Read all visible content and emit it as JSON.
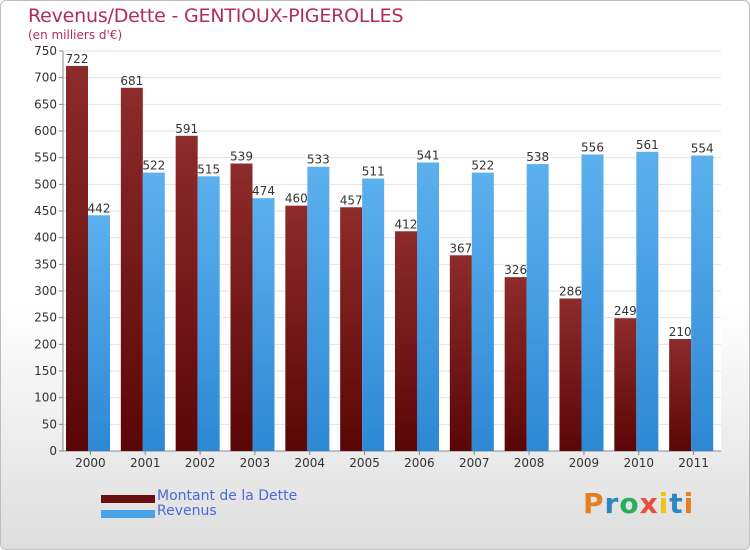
{
  "chart_data": {
    "type": "bar",
    "title": "Revenus/Dette - GENTIOUX-PIGEROLLES",
    "subtitle": "(en milliers d'€)",
    "categories": [
      "2000",
      "2001",
      "2002",
      "2003",
      "2004",
      "2005",
      "2006",
      "2007",
      "2008",
      "2009",
      "2010",
      "2011"
    ],
    "series": [
      {
        "name": "Montant de la Dette",
        "color": "#7a1a1a",
        "values": [
          722,
          681,
          591,
          539,
          460,
          457,
          412,
          367,
          326,
          286,
          249,
          210
        ]
      },
      {
        "name": "Revenus",
        "color": "#4aa3e6",
        "values": [
          442,
          522,
          515,
          474,
          533,
          511,
          541,
          522,
          538,
          556,
          561,
          554
        ]
      }
    ],
    "ylim": [
      0,
      750
    ],
    "yticks": [
      0,
      50,
      100,
      150,
      200,
      250,
      300,
      350,
      400,
      450,
      500,
      550,
      600,
      650,
      700,
      750
    ],
    "grid": true,
    "legend_position": "bottom-left"
  },
  "logo": {
    "text": "Proxiti",
    "letters": [
      "P",
      "r",
      "o",
      "x",
      "i",
      "t",
      "i"
    ],
    "colors": [
      "#e67e22",
      "#2e86c1",
      "#27ae60",
      "#e74c3c",
      "#f1c40f",
      "#2e86c1",
      "#e67e22"
    ]
  }
}
